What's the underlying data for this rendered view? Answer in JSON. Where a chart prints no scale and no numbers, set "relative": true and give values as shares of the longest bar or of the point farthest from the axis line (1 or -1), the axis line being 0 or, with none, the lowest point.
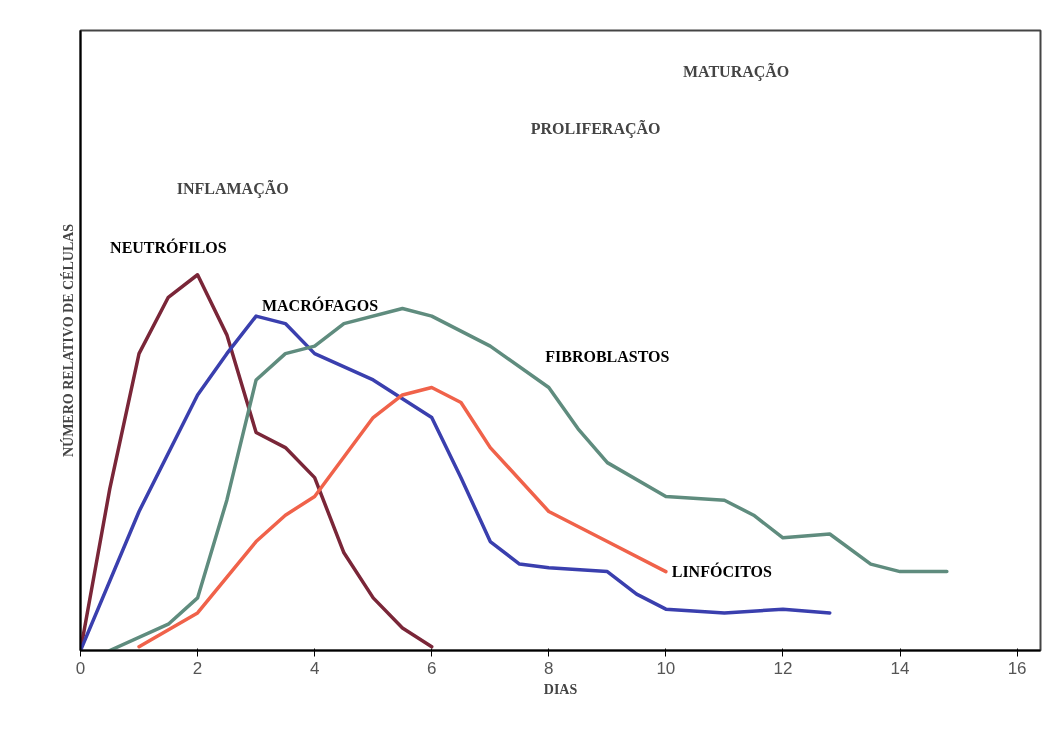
{
  "chart_data": {
    "type": "line",
    "relative": true,
    "xlabel": "DIAS",
    "ylabel": "NÚMERO RELATIVO DE CÉLULAS",
    "xlim": [
      0,
      16.4
    ],
    "xticks": [
      0,
      2,
      4,
      6,
      8,
      10,
      12,
      14,
      16
    ],
    "grid": false,
    "marker": "none",
    "line_style": "solid",
    "annotations": [
      "0",
      "INFLAMAÇÃO",
      "PROLIFERAÇÃO",
      "MATURAÇÃO"
    ],
    "series": [
      {
        "name": "NEUTRÓFILOS",
        "color": "#7a2638",
        "x": [
          0,
          0.5,
          1,
          1.5,
          2,
          2.5,
          3,
          3.5,
          4,
          4.5,
          5,
          5.5,
          6
        ],
        "values": [
          0,
          0.43,
          0.79,
          0.94,
          1,
          0.84,
          0.58,
          0.54,
          0.46,
          0.26,
          0.14,
          0.06,
          0.01
        ]
      },
      {
        "name": "MACRÓFAGOS",
        "color": "#3a3fae",
        "x": [
          0,
          1,
          2,
          2.5,
          3,
          3.5,
          4,
          5,
          6,
          6.5,
          7,
          7.5,
          8,
          9,
          9.5,
          10,
          11,
          12,
          12.8
        ],
        "values": [
          0,
          0.37,
          0.68,
          0.79,
          0.89,
          0.87,
          0.79,
          0.72,
          0.62,
          0.46,
          0.29,
          0.23,
          0.22,
          0.21,
          0.15,
          0.11,
          0.1,
          0.11,
          0.1
        ]
      },
      {
        "name": "FIBROBLASTOS",
        "color": "#5f8c7e",
        "x": [
          0.5,
          1.5,
          2,
          2.5,
          3,
          3.5,
          4,
          4.5,
          5.5,
          6,
          7,
          8,
          8.5,
          9,
          10,
          11,
          11.5,
          12,
          12.8,
          13.5,
          14,
          14.8
        ],
        "values": [
          0,
          0.07,
          0.14,
          0.4,
          0.72,
          0.79,
          0.81,
          0.87,
          0.91,
          0.89,
          0.81,
          0.7,
          0.59,
          0.5,
          0.41,
          0.4,
          0.36,
          0.3,
          0.31,
          0.23,
          0.21,
          0.21
        ]
      },
      {
        "name": "LINFÓCITOS",
        "color": "#f0624a",
        "x": [
          1,
          2,
          3,
          3.5,
          4,
          5,
          5.5,
          6,
          6.5,
          7,
          8,
          9,
          10
        ],
        "values": [
          0.01,
          0.1,
          0.29,
          0.36,
          0.41,
          0.62,
          0.68,
          0.7,
          0.66,
          0.54,
          0.37,
          0.29,
          0.21
        ]
      }
    ]
  }
}
